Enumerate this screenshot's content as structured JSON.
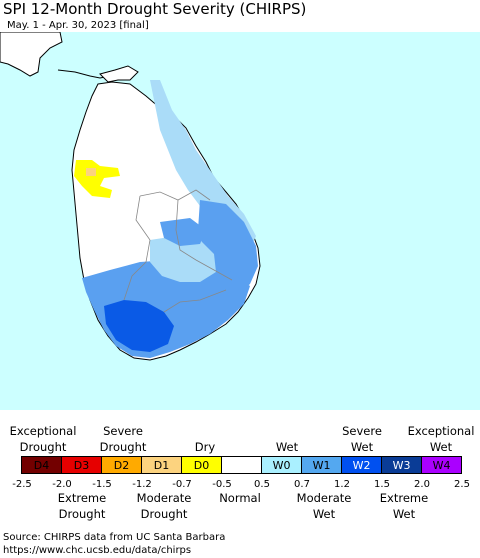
{
  "header": {
    "title": "SPI 12-Month Drought Severity (CHIRPS)",
    "subtitle": "May. 1 - Apr. 30, 2023 [final]"
  },
  "colors": {
    "water": "#ccffff",
    "land": "#ffffff",
    "w0": "#aadcf8",
    "w1": "#5aa0f0",
    "w2": "#0a5ae6",
    "d0": "#ffff00"
  },
  "legend": {
    "top_labels": {
      "exceptional_drought": "Exceptional\nDrought",
      "severe_drought": "Severe\nDrought",
      "dry": "Dry",
      "wet": "Wet",
      "severe_wet": "Severe\nWet",
      "exceptional_wet": "Exceptional\nWet"
    },
    "cells": [
      {
        "label": "D4",
        "color": "#730000",
        "text": "#000000"
      },
      {
        "label": "D3",
        "color": "#e60000",
        "text": "#000000"
      },
      {
        "label": "D2",
        "color": "#ffaa00",
        "text": "#000000"
      },
      {
        "label": "D1",
        "color": "#fcd37f",
        "text": "#000000"
      },
      {
        "label": "D0",
        "color": "#ffff00",
        "text": "#000000"
      },
      {
        "label": "",
        "color": "#ffffff",
        "text": "#000000"
      },
      {
        "label": "W0",
        "color": "#aaf0ff",
        "text": "#000000"
      },
      {
        "label": "W1",
        "color": "#54a8f0",
        "text": "#000000"
      },
      {
        "label": "W2",
        "color": "#0050f0",
        "text": "#ffffff"
      },
      {
        "label": "W3",
        "color": "#0a3c96",
        "text": "#ffffff"
      },
      {
        "label": "W4",
        "color": "#aa00ff",
        "text": "#000000"
      }
    ],
    "ticks": [
      "-2.5",
      "-2.0",
      "-1.5",
      "-1.2",
      "-0.7",
      "-0.5",
      "0.5",
      "0.7",
      "1.2",
      "1.5",
      "2.0",
      "2.5"
    ],
    "bottom_labels": {
      "extreme_drought": "Extreme\nDrought",
      "moderate_drought": "Moderate\nDrought",
      "normal": "Normal",
      "moderate_wet": "Moderate\nWet",
      "extreme_wet": "Extreme\nWet"
    }
  },
  "source": {
    "line1": "Source: CHIRPS data from UC Santa Barbara",
    "line2": "https://www.chc.ucsb.edu/data/chirps"
  }
}
